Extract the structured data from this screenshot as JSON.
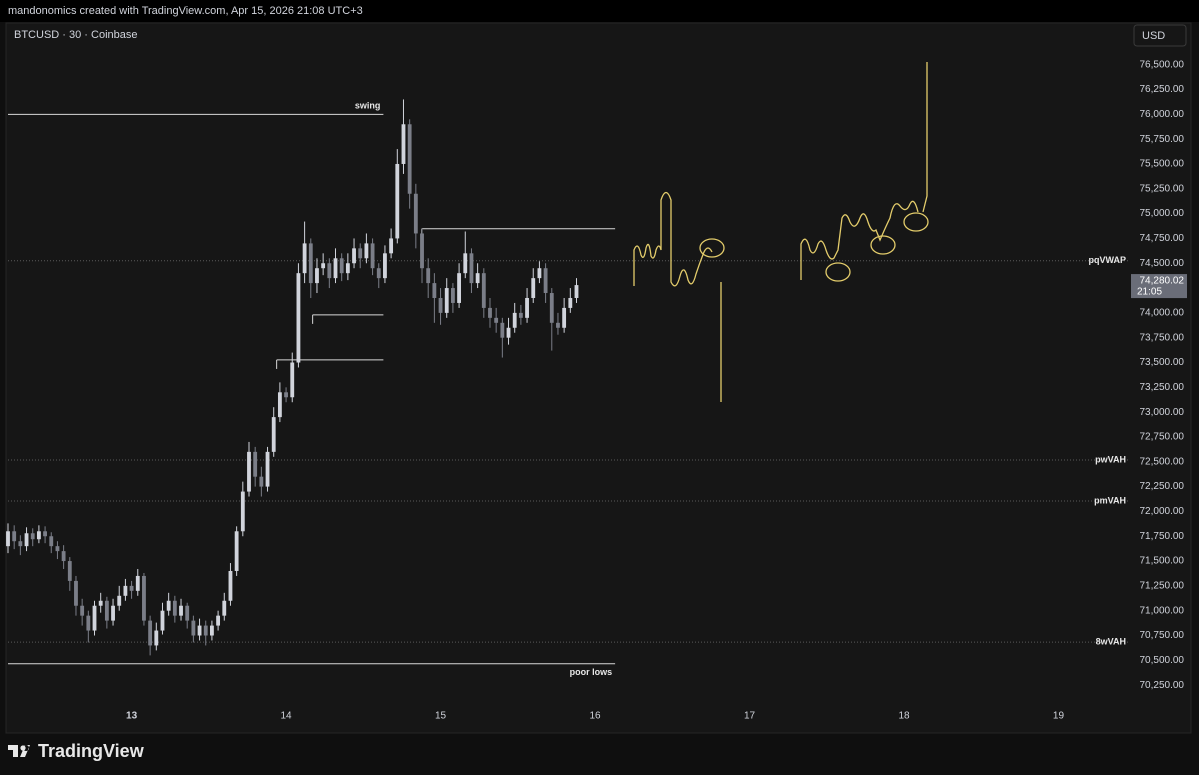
{
  "header": {
    "credit": "mandonomics created with TradingView.com, Apr 15, 2026 21:08 UTC+3",
    "brand": "TradingView"
  },
  "chart_data": {
    "type": "candlestick",
    "title": "BTCUSD · 30 · Coinbase",
    "currency": "USD",
    "colors": {
      "up": "#d1d4dc",
      "down": "#7b7e88",
      "drawing": "#e3cc6b"
    },
    "xlim": [
      12.2,
      19.45
    ],
    "xticks": [
      13,
      14,
      15,
      16,
      17,
      18,
      19
    ],
    "ylim": [
      70050,
      76910
    ],
    "yticks": [
      {
        "value": 70250,
        "label": "70,250.00"
      },
      {
        "value": 70500,
        "label": "70,500.00"
      },
      {
        "value": 70750,
        "label": "70,750.00"
      },
      {
        "value": 71000,
        "label": "71,000.00"
      },
      {
        "value": 71250,
        "label": "71,250.00"
      },
      {
        "value": 71500,
        "label": "71,500.00"
      },
      {
        "value": 71750,
        "label": "71,750.00"
      },
      {
        "value": 72000,
        "label": "72,000.00"
      },
      {
        "value": 72250,
        "label": "72,250.00"
      },
      {
        "value": 72500,
        "label": "72,500.00"
      },
      {
        "value": 72750,
        "label": "72,750.00"
      },
      {
        "value": 73000,
        "label": "73,000.00"
      },
      {
        "value": 73250,
        "label": "73,250.00"
      },
      {
        "value": 73500,
        "label": "73,500.00"
      },
      {
        "value": 73750,
        "label": "73,750.00"
      },
      {
        "value": 74000,
        "label": "74,000.00"
      },
      {
        "value": 74250,
        "label": "74,250.00"
      },
      {
        "value": 74500,
        "label": "74,500.00"
      },
      {
        "value": 74750,
        "label": "74,750.00"
      },
      {
        "value": 75000,
        "label": "75,000.00"
      },
      {
        "value": 75250,
        "label": "75,250.00"
      },
      {
        "value": 75500,
        "label": "75,500.00"
      },
      {
        "value": 75750,
        "label": "75,750.00"
      },
      {
        "value": 76000,
        "label": "76,000.00"
      },
      {
        "value": 76250,
        "label": "76,250.00"
      },
      {
        "value": 76500,
        "label": "76,500.00"
      }
    ],
    "grid": false,
    "x": [
      12.2,
      12.24,
      12.28,
      12.32,
      12.36,
      12.4,
      12.44,
      12.48,
      12.52,
      12.56,
      12.6,
      12.64,
      12.68,
      12.72,
      12.76,
      12.8,
      12.84,
      12.88,
      12.92,
      12.96,
      13.0,
      13.04,
      13.08,
      13.12,
      13.16,
      13.2,
      13.24,
      13.28,
      13.32,
      13.36,
      13.4,
      13.44,
      13.48,
      13.52,
      13.56,
      13.6,
      13.64,
      13.68,
      13.72,
      13.76,
      13.8,
      13.84,
      13.88,
      13.92,
      13.96,
      14.0,
      14.04,
      14.08,
      14.12,
      14.16,
      14.2,
      14.24,
      14.28,
      14.32,
      14.36,
      14.4,
      14.44,
      14.48,
      14.52,
      14.56,
      14.6,
      14.64,
      14.68,
      14.72,
      14.76,
      14.8,
      14.84,
      14.88,
      14.92,
      14.96,
      15.0,
      15.04,
      15.08,
      15.12,
      15.16,
      15.2,
      15.24,
      15.28,
      15.32,
      15.36,
      15.4,
      15.44,
      15.48,
      15.52,
      15.56,
      15.6,
      15.64,
      15.68,
      15.72,
      15.76,
      15.8,
      15.84,
      15.88
    ],
    "open": [
      71650,
      71800,
      71700,
      71650,
      71780,
      71720,
      71800,
      71750,
      71650,
      71600,
      71500,
      71300,
      71050,
      70950,
      70800,
      71050,
      71100,
      70900,
      71050,
      71150,
      71250,
      71200,
      71350,
      70900,
      70650,
      70800,
      71000,
      71100,
      70950,
      71050,
      70900,
      70750,
      70850,
      70750,
      70850,
      70950,
      71100,
      71400,
      71800,
      72200,
      72600,
      72350,
      72250,
      72600,
      72950,
      73200,
      73150,
      73500,
      74400,
      74700,
      74300,
      74450,
      74500,
      74350,
      74550,
      74400,
      74500,
      74650,
      74550,
      74700,
      74450,
      74350,
      74600,
      74750,
      75500,
      75900,
      75200,
      74800,
      74450,
      74300,
      74150,
      74000,
      74250,
      74100,
      74400,
      74600,
      74300,
      74400,
      74050,
      73950,
      73900,
      73750,
      73850,
      74000,
      73950,
      74150,
      74350,
      74450,
      74200,
      73900,
      73850,
      74050,
      74150
    ],
    "high": [
      71880,
      71860,
      71760,
      71840,
      71830,
      71860,
      71850,
      71790,
      71700,
      71660,
      71540,
      71350,
      71120,
      71000,
      71100,
      71180,
      71140,
      71120,
      71250,
      71320,
      71300,
      71420,
      71380,
      70950,
      70880,
      71080,
      71180,
      71150,
      71120,
      71080,
      70950,
      70920,
      70900,
      70900,
      71000,
      71180,
      71480,
      71850,
      72300,
      72700,
      72650,
      72450,
      72650,
      73050,
      73300,
      73250,
      73600,
      74500,
      74920,
      74750,
      74550,
      74600,
      74550,
      74650,
      74600,
      74600,
      74750,
      74700,
      74800,
      74750,
      74500,
      74680,
      74850,
      75650,
      76150,
      75950,
      75300,
      74850,
      74550,
      74400,
      74250,
      74350,
      74300,
      74500,
      74820,
      74650,
      74500,
      74450,
      74150,
      74050,
      73950,
      73950,
      74100,
      74080,
      74250,
      74450,
      74520,
      74500,
      74250,
      74000,
      74150,
      74250,
      74350
    ],
    "low": [
      71580,
      71620,
      71560,
      71600,
      71650,
      71680,
      71680,
      71580,
      71520,
      71420,
      71200,
      70950,
      70850,
      70680,
      70750,
      70980,
      70820,
      70850,
      71000,
      71100,
      71120,
      71150,
      70850,
      70550,
      70600,
      70760,
      70950,
      70880,
      70900,
      70820,
      70680,
      70700,
      70650,
      70700,
      70800,
      70900,
      71050,
      71350,
      71750,
      72150,
      72250,
      72150,
      72200,
      72550,
      72900,
      73100,
      73100,
      73450,
      74300,
      74150,
      74200,
      74380,
      74250,
      74300,
      74320,
      74330,
      74450,
      74450,
      74500,
      74380,
      74250,
      74300,
      74550,
      74700,
      75400,
      75050,
      74650,
      74300,
      74150,
      73900,
      73880,
      73950,
      74000,
      74050,
      74350,
      74200,
      74250,
      73950,
      73850,
      73800,
      73550,
      73680,
      73800,
      73880,
      73900,
      74100,
      74300,
      74100,
      73620,
      73780,
      73800,
      74000,
      74100
    ],
    "close": [
      71800,
      71700,
      71650,
      71780,
      71720,
      71800,
      71750,
      71650,
      71600,
      71500,
      71300,
      71050,
      70950,
      70800,
      71050,
      71100,
      70900,
      71050,
      71150,
      71250,
      71200,
      71350,
      70900,
      70650,
      70800,
      71000,
      71100,
      70950,
      71050,
      70900,
      70750,
      70850,
      70750,
      70850,
      70950,
      71100,
      71400,
      71800,
      72200,
      72600,
      72350,
      72250,
      72600,
      72950,
      73200,
      73150,
      73500,
      74400,
      74700,
      74300,
      74450,
      74500,
      74350,
      74550,
      74400,
      74500,
      74650,
      74550,
      74700,
      74450,
      74350,
      74600,
      74750,
      75500,
      75900,
      75200,
      74800,
      74450,
      74300,
      74150,
      74000,
      74250,
      74100,
      74400,
      74600,
      74300,
      74400,
      74050,
      73950,
      73900,
      73750,
      73850,
      74000,
      73950,
      74150,
      74350,
      74450,
      74200,
      73900,
      73850,
      74050,
      74150,
      74280.02
    ],
    "last_price": {
      "value": 74280.02,
      "label": "74,280.02",
      "countdown": "21:05"
    },
    "levels": [
      {
        "label": "swing",
        "value": 76000,
        "x": [
          12.2,
          14.63
        ]
      },
      {
        "label": "poor lows",
        "value": 70465,
        "x": [
          12.2,
          16.13
        ]
      },
      {
        "value": 74847,
        "x": [
          14.878,
          16.13
        ]
      },
      {
        "value": 73980,
        "x": [
          14.172,
          14.63
        ]
      },
      {
        "value": 73526,
        "x": [
          13.939,
          14.63
        ]
      },
      {
        "label": "pqVWAP",
        "value": 74525,
        "dotted": true
      },
      {
        "label": "pwVAH",
        "value": 72518,
        "dotted": true
      },
      {
        "label": "pmVAH",
        "value": 72105,
        "dotted": true
      },
      {
        "label": "8wVAH",
        "value": 70683,
        "dotted": true
      }
    ]
  }
}
